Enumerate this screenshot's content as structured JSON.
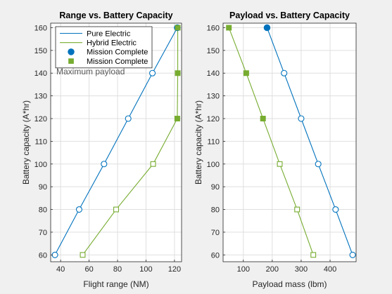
{
  "colors": {
    "figure_bg": "#f0f0f0",
    "axes_bg": "#ffffff",
    "axis_line": "#262626",
    "grid": "#dfdfdf",
    "pure": "#0072bd",
    "hybrid": "#77ac30",
    "annotation": "#595959"
  },
  "chart_data": [
    {
      "type": "line",
      "title": "Range vs. Battery Capacity",
      "xlabel": "Flight range (NM)",
      "ylabel": "Battery capacity (A*hr)",
      "xlim": [
        33,
        125
      ],
      "ylim": [
        57,
        162
      ],
      "xticks": [
        40,
        60,
        80,
        100,
        120
      ],
      "yticks": [
        60,
        70,
        80,
        90,
        100,
        110,
        120,
        130,
        140,
        150,
        160
      ],
      "grid": true,
      "legend_position": "top-left",
      "annotation": "Maximum payload",
      "series": [
        {
          "name": "Pure Electric",
          "color": "#0072bd",
          "marker": "open-circle",
          "points": [
            [
              36,
              60
            ],
            [
              53,
              80
            ],
            [
              70.5,
              100
            ],
            [
              87.5,
              120
            ],
            [
              104.5,
              140
            ],
            [
              122,
              160
            ]
          ]
        },
        {
          "name": "Hybrid Electric",
          "color": "#77ac30",
          "marker": "open-square",
          "points": [
            [
              55.5,
              60
            ],
            [
              79,
              80
            ],
            [
              105,
              100
            ],
            [
              122,
              120
            ],
            [
              122.3,
              140
            ],
            [
              122.3,
              160
            ]
          ]
        },
        {
          "name": "Mission Complete",
          "color": "#0072bd",
          "marker": "filled-circle",
          "points": [
            [
              122,
              160
            ]
          ]
        },
        {
          "name": "Mission Complete",
          "color": "#77ac30",
          "marker": "filled-square",
          "points": [
            [
              122,
              120
            ],
            [
              122.3,
              140
            ],
            [
              122.3,
              160
            ]
          ]
        }
      ]
    },
    {
      "type": "line",
      "title": "Payload vs. Battery Capacity",
      "xlabel": "Payload mass (lbm)",
      "ylabel": "Battery capacity (A*hr)",
      "xlim": [
        30,
        490
      ],
      "ylim": [
        57,
        162
      ],
      "xticks": [
        100,
        200,
        300,
        400
      ],
      "yticks": [
        60,
        70,
        80,
        90,
        100,
        110,
        120,
        130,
        140,
        150,
        160
      ],
      "grid": true,
      "series": [
        {
          "color": "#0072bd",
          "marker": "open-circle",
          "points": [
            [
              478,
              60
            ],
            [
              419,
              80
            ],
            [
              359,
              100
            ],
            [
              300,
              120
            ],
            [
              241,
              140
            ],
            [
              182,
              160
            ]
          ]
        },
        {
          "color": "#77ac30",
          "marker": "open-square",
          "points": [
            [
              342,
              60
            ],
            [
              286,
              80
            ],
            [
              226,
              100
            ],
            [
              168,
              120
            ],
            [
              110,
              140
            ],
            [
              50,
              160
            ]
          ]
        },
        {
          "color": "#0072bd",
          "marker": "filled-circle",
          "points": [
            [
              182,
              160
            ]
          ]
        },
        {
          "color": "#77ac30",
          "marker": "filled-square",
          "points": [
            [
              168,
              120
            ],
            [
              110,
              140
            ],
            [
              50,
              160
            ]
          ]
        }
      ]
    }
  ]
}
